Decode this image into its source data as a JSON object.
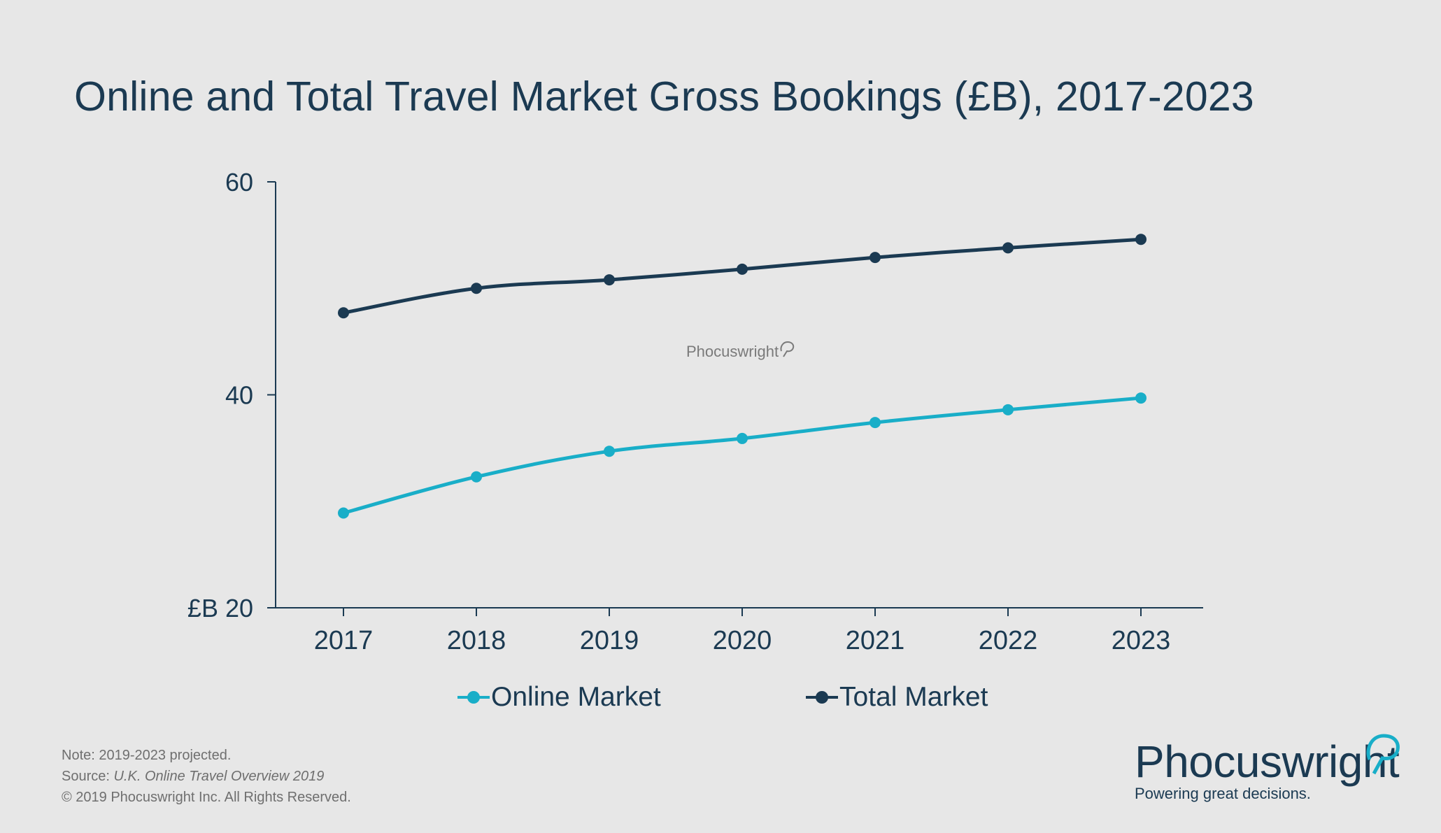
{
  "title": "Online and Total Travel Market Gross Bookings (£B), 2017-2023",
  "watermark": "Phocuswright",
  "footnotes": {
    "note": "Note: 2019-2023 projected.",
    "source_prefix": "Source: ",
    "source_title": "U.K. Online Travel Overview 2019",
    "copyright": "© 2019  Phocuswright Inc. All Rights Reserved."
  },
  "logo": {
    "name": "Phocuswright",
    "tagline": "Powering great decisions."
  },
  "colors": {
    "online": "#19aec8",
    "total": "#1b3a52",
    "axis": "#1b3a52",
    "background": "#e7e7e7"
  },
  "chart_data": {
    "type": "line",
    "title": "Online and Total Travel Market Gross Bookings (£B), 2017-2023",
    "x": [
      "2017",
      "2018",
      "2019",
      "2020",
      "2021",
      "2022",
      "2023"
    ],
    "series": [
      {
        "name": "Online Market",
        "color": "#19aec8",
        "values": [
          28.9,
          32.3,
          34.7,
          35.9,
          37.4,
          38.6,
          39.7
        ]
      },
      {
        "name": "Total Market",
        "color": "#1b3a52",
        "values": [
          47.7,
          50.0,
          50.8,
          51.8,
          52.9,
          53.8,
          54.6
        ]
      }
    ],
    "yticks": [
      "£B 20",
      "40",
      "60"
    ],
    "ylim": [
      20,
      60
    ],
    "grid": false,
    "legend": "bottom"
  }
}
